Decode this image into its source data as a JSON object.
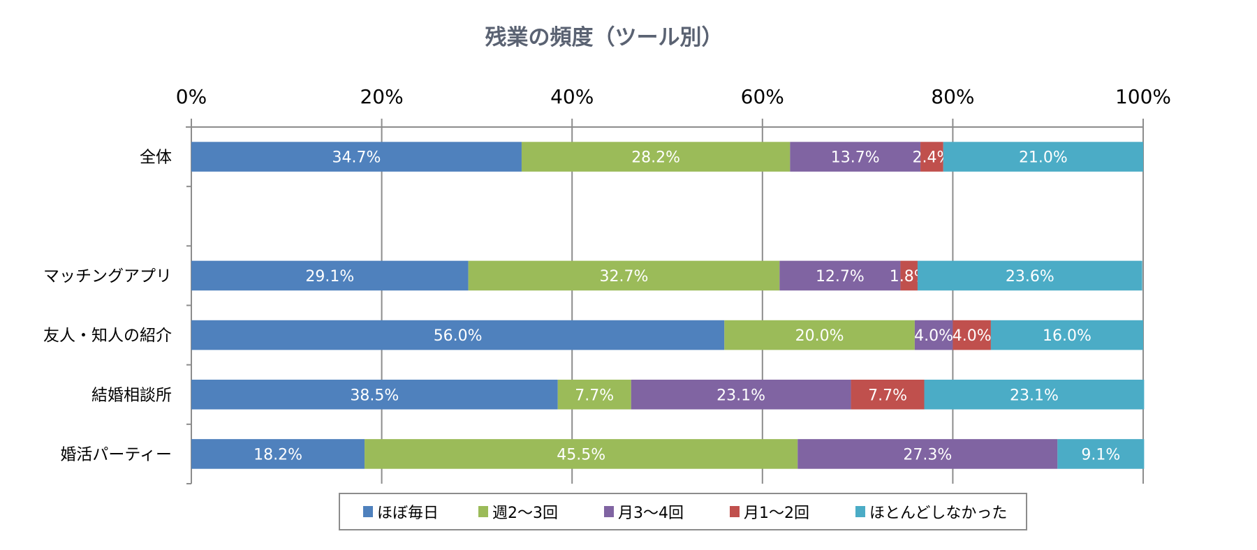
{
  "chart_data": {
    "type": "bar",
    "orientation": "horizontal",
    "stacked": "percent",
    "title": "残業の頻度（ツール別）",
    "categories": [
      "全体",
      "",
      "マッチングアプリ",
      "友人・知人の紹介",
      "結婚相談所",
      "婚活パーティー"
    ],
    "series": [
      {
        "name": "ほぼ毎日",
        "color": "#4f81bd",
        "values": [
          34.7,
          null,
          29.1,
          56.0,
          38.5,
          18.2
        ]
      },
      {
        "name": "週2～3回",
        "color": "#9bbb59",
        "values": [
          28.2,
          null,
          32.7,
          20.0,
          7.7,
          45.5
        ]
      },
      {
        "name": "月3～4回",
        "color": "#8064a2",
        "values": [
          13.7,
          null,
          12.7,
          4.0,
          23.1,
          27.3
        ]
      },
      {
        "name": "月1～2回",
        "color": "#c0504d",
        "values": [
          2.4,
          null,
          1.8,
          4.0,
          7.7,
          0
        ]
      },
      {
        "name": "ほとんどしなかった",
        "color": "#4bacc6",
        "values": [
          21.0,
          null,
          23.6,
          16.0,
          23.1,
          9.1
        ]
      }
    ],
    "xlim": [
      0,
      100
    ],
    "xticks": [
      "0%",
      "20%",
      "40%",
      "60%",
      "80%",
      "100%"
    ],
    "x_axis_position": "top",
    "grid": true,
    "legend": "bottom",
    "data_labels": true
  }
}
